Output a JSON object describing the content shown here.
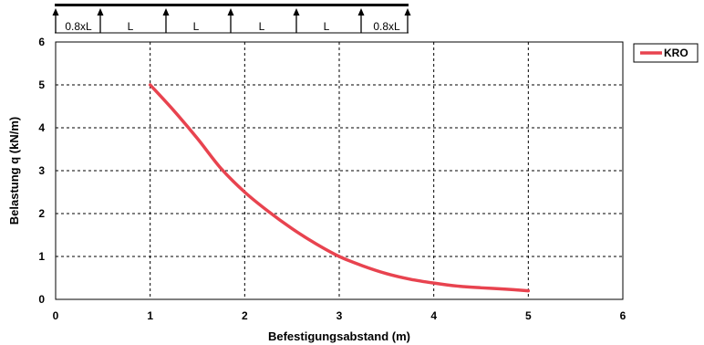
{
  "chart_data": {
    "type": "line",
    "xlabel": "Befestigungsabstand (m)",
    "ylabel": "Belastung q (kN/m)",
    "xlim": [
      0,
      6
    ],
    "ylim": [
      0,
      6
    ],
    "x_ticks": [
      "0",
      "1",
      "2",
      "3",
      "4",
      "5",
      "6"
    ],
    "y_ticks": [
      "0",
      "1",
      "2",
      "3",
      "4",
      "5",
      "6"
    ],
    "grid": true,
    "legend_position": "top-right",
    "series": [
      {
        "name": "KRO",
        "color": "#e8434f",
        "x": [
          1.0,
          1.25,
          1.5,
          1.75,
          2.0,
          2.25,
          2.5,
          2.75,
          3.0,
          3.25,
          3.5,
          3.75,
          4.0,
          4.25,
          4.5,
          4.75,
          5.0
        ],
        "y": [
          5.0,
          4.4,
          3.75,
          3.05,
          2.5,
          2.05,
          1.65,
          1.3,
          1.0,
          0.78,
          0.6,
          0.47,
          0.38,
          0.31,
          0.27,
          0.24,
          0.2
        ]
      }
    ]
  },
  "span_diagram": {
    "labels": [
      "0.8xL",
      "L",
      "L",
      "L",
      "L",
      "0.8xL"
    ]
  }
}
